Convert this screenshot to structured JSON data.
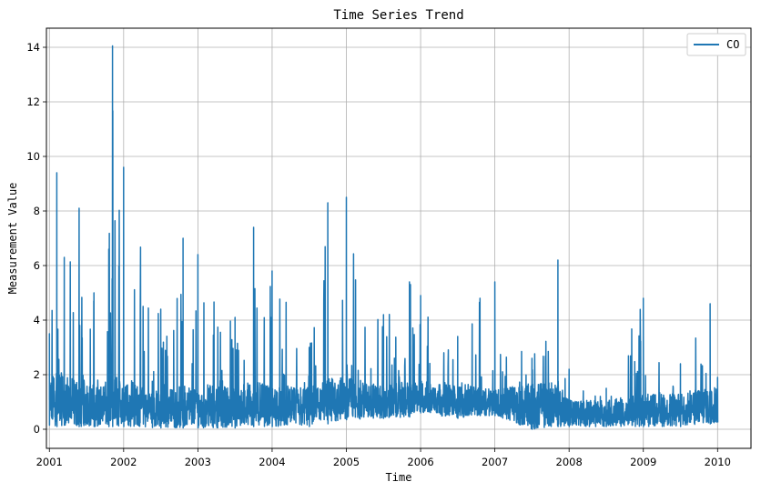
{
  "chart_data": {
    "type": "line",
    "title": "Time Series Trend",
    "xlabel": "Time",
    "ylabel": "Measurement Value",
    "xlim": [
      2000.96,
      2010.45
    ],
    "ylim": [
      -0.7,
      14.7
    ],
    "xticks": [
      2001,
      2002,
      2003,
      2004,
      2005,
      2006,
      2007,
      2008,
      2009,
      2010
    ],
    "xtick_labels": [
      "2001",
      "2002",
      "2003",
      "2004",
      "2005",
      "2006",
      "2007",
      "2008",
      "2009",
      "2010"
    ],
    "yticks": [
      0,
      2,
      4,
      6,
      8,
      10,
      12,
      14
    ],
    "ytick_labels": [
      "0",
      "2",
      "4",
      "6",
      "8",
      "10",
      "12",
      "14"
    ],
    "grid": true,
    "legend_position": "top-right",
    "series": [
      {
        "name": "CO",
        "color": "#1f77b4",
        "approximate_envelope": {
          "description": "daily-frequency noisy series; values below are approximate envelope readings",
          "t": [
            2001.0,
            2001.1,
            2001.2,
            2001.4,
            2001.6,
            2001.8,
            2001.85,
            2002.0,
            2002.5,
            2002.8,
            2003.0,
            2003.5,
            2003.75,
            2004.0,
            2004.5,
            2004.75,
            2005.0,
            2005.5,
            2005.85,
            2006.0,
            2006.5,
            2006.8,
            2007.0,
            2007.5,
            2007.85,
            2008.0,
            2008.5,
            2009.0,
            2009.5,
            2009.9,
            2010.0
          ],
          "upper": [
            3.5,
            9.4,
            6.3,
            8.1,
            5.0,
            6.6,
            14.05,
            9.6,
            4.4,
            7.0,
            6.4,
            4.1,
            7.4,
            5.8,
            3.0,
            8.3,
            8.5,
            4.2,
            5.4,
            4.9,
            3.4,
            4.8,
            5.4,
            2.6,
            6.2,
            2.2,
            1.5,
            4.8,
            2.4,
            4.6,
            1.9
          ],
          "lower": [
            0.15,
            0.1,
            0.15,
            0.1,
            0.1,
            0.1,
            0.1,
            0.1,
            0.05,
            0.05,
            0.05,
            0.05,
            0.1,
            0.1,
            0.1,
            0.2,
            0.35,
            0.4,
            0.45,
            0.6,
            0.4,
            0.5,
            0.5,
            0.0,
            0.1,
            0.1,
            0.1,
            0.1,
            0.1,
            0.2,
            0.25
          ],
          "typical": [
            0.8,
            1.0,
            0.9,
            0.8,
            0.7,
            0.8,
            0.9,
            0.8,
            0.6,
            0.7,
            0.7,
            0.7,
            0.8,
            0.7,
            0.7,
            0.9,
            1.0,
            0.9,
            1.0,
            1.1,
            0.9,
            1.0,
            0.9,
            0.7,
            0.8,
            0.5,
            0.5,
            0.6,
            0.6,
            0.8,
            0.8
          ]
        }
      }
    ]
  }
}
